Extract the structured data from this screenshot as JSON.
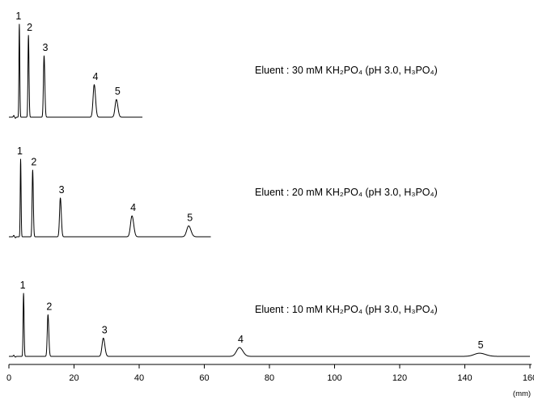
{
  "chart_data": [
    {
      "type": "line",
      "title": "",
      "annotation": "Eluent : 30 mM KH₂PO₄ (pH 3.0, H₃PO₄)",
      "x_end": 41,
      "baseline_noise_x": 1.5,
      "peaks": [
        {
          "label": "1",
          "x": 3.2,
          "height": 1.0,
          "width": 0.12
        },
        {
          "label": "2",
          "x": 6.0,
          "height": 0.88,
          "width": 0.15
        },
        {
          "label": "3",
          "x": 10.8,
          "height": 0.66,
          "width": 0.2
        },
        {
          "label": "4",
          "x": 26.2,
          "height": 0.35,
          "width": 0.35
        },
        {
          "label": "5",
          "x": 33.0,
          "height": 0.19,
          "width": 0.4
        }
      ]
    },
    {
      "type": "line",
      "title": "",
      "annotation": "Eluent : 20 mM KH₂PO₄ (pH 3.0, H₃PO₄)",
      "x_end": 62,
      "baseline_noise_x": 1.5,
      "peaks": [
        {
          "label": "1",
          "x": 3.6,
          "height": 1.0,
          "width": 0.12
        },
        {
          "label": "2",
          "x": 7.3,
          "height": 0.86,
          "width": 0.17
        },
        {
          "label": "3",
          "x": 15.8,
          "height": 0.5,
          "width": 0.25
        },
        {
          "label": "4",
          "x": 37.8,
          "height": 0.27,
          "width": 0.45
        },
        {
          "label": "5",
          "x": 55.2,
          "height": 0.14,
          "width": 0.6
        }
      ]
    },
    {
      "type": "line",
      "title": "",
      "annotation": "Eluent : 10 mM KH₂PO₄ (pH 3.0, H₃PO₄)",
      "x_end": 160,
      "baseline_noise_x": 1.5,
      "peaks": [
        {
          "label": "1",
          "x": 4.5,
          "height": 1.0,
          "width": 0.14
        },
        {
          "label": "2",
          "x": 12.0,
          "height": 0.66,
          "width": 0.22
        },
        {
          "label": "3",
          "x": 29.0,
          "height": 0.29,
          "width": 0.4
        },
        {
          "label": "4",
          "x": 70.8,
          "height": 0.14,
          "width": 0.9
        },
        {
          "label": "5",
          "x": 144.5,
          "height": 0.05,
          "width": 1.6
        }
      ]
    }
  ],
  "x_axis": {
    "min": 0,
    "max": 160,
    "ticks": [
      0,
      20,
      40,
      60,
      80,
      100,
      120,
      140,
      160
    ],
    "unit": "(mm)"
  }
}
